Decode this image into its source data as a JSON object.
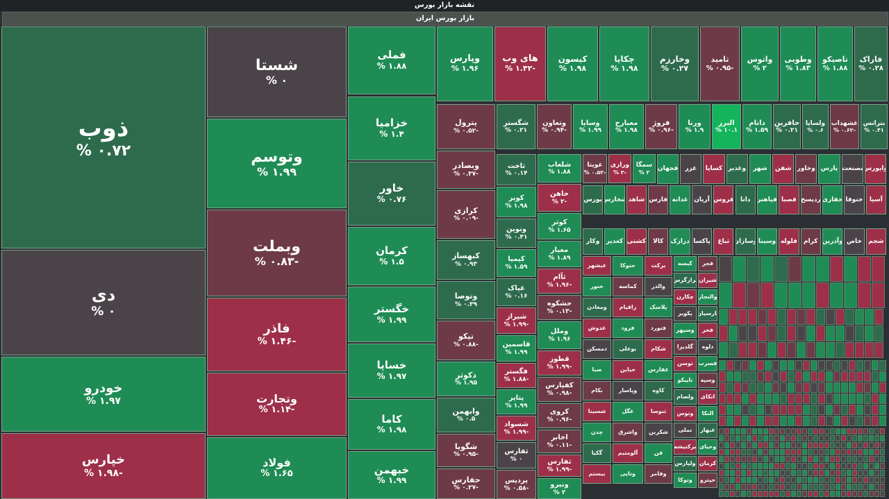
{
  "header": {
    "title": "نقشه بازار بورس",
    "market": "بازار بورس ایران"
  },
  "colors": {
    "up": "#1f8c55",
    "up_mild": "#2e6b4c",
    "up_bright": "#14b45c",
    "neutral": "#4a4449",
    "down_mild": "#6e3a48",
    "down": "#9e2f49"
  },
  "chart_data": {
    "type": "treemap",
    "title": "نقشه بازار بورس",
    "market": "بازار بورس ایران",
    "tiles": [
      {
        "symbol": "ذوب",
        "change": "% ۰.۷۲",
        "value": 0.72
      },
      {
        "symbol": "دی",
        "change": "% ۰",
        "value": 0
      },
      {
        "symbol": "خودرو",
        "change": "% ۱.۹۷",
        "value": 1.97
      },
      {
        "symbol": "خپارس",
        "change": "% ۱.۹۸-",
        "value": -1.98
      },
      {
        "symbol": "شستا",
        "change": "% ۰",
        "value": 0
      },
      {
        "symbol": "وتوسم",
        "change": "% ۱.۹۹",
        "value": 1.99
      },
      {
        "symbol": "وبملت",
        "change": "% ۰.۸۳-",
        "value": -0.83
      },
      {
        "symbol": "فاذر",
        "change": "% ۱.۴۶-",
        "value": -1.46
      },
      {
        "symbol": "وتجارت",
        "change": "% ۱.۱۴-",
        "value": -1.14
      },
      {
        "symbol": "فولاد",
        "change": "% ۱.۶۵",
        "value": 1.65
      },
      {
        "symbol": "فملی",
        "change": "% ۱.۸۸",
        "value": 1.88
      },
      {
        "symbol": "خزامیا",
        "change": "% ۱.۴",
        "value": 1.4
      },
      {
        "symbol": "خاور",
        "change": "% ۰.۷۶",
        "value": 0.76
      },
      {
        "symbol": "کرمان",
        "change": "% ۱.۵",
        "value": 1.5
      },
      {
        "symbol": "خگستر",
        "change": "% ۱.۹۹",
        "value": 1.99
      },
      {
        "symbol": "خساپا",
        "change": "% ۱.۹۷",
        "value": 1.97
      },
      {
        "symbol": "کاما",
        "change": "% ۱.۹۸",
        "value": 1.98
      },
      {
        "symbol": "خبهمن",
        "change": "% ۱.۹۹",
        "value": 1.99
      },
      {
        "symbol": "وپارس",
        "change": "% ۱.۹۶",
        "value": 1.96
      },
      {
        "symbol": "های وب",
        "change": "% ۱.۴۲-",
        "value": -1.42
      },
      {
        "symbol": "کیسون",
        "change": "% ۱.۹۸",
        "value": 1.98
      },
      {
        "symbol": "چکاپا",
        "change": "% ۱.۹۸",
        "value": 1.98
      },
      {
        "symbol": "وخارزم",
        "change": "% ۰.۲۷",
        "value": 0.27
      },
      {
        "symbol": "ثامید",
        "change": "% ۰.۹۵-",
        "value": -0.95
      },
      {
        "symbol": "واتوس",
        "change": "% ۲",
        "value": 2
      },
      {
        "symbol": "وطوبی",
        "change": "% ۱.۸۳",
        "value": 1.83
      },
      {
        "symbol": "تاصیکو",
        "change": "% ۱.۸۸",
        "value": 1.88
      },
      {
        "symbol": "فاراک",
        "change": "% ۰.۲۸",
        "value": 0.28
      },
      {
        "symbol": "پترول",
        "change": "% ۰.۵۲-",
        "value": -0.52
      },
      {
        "symbol": "شگستر",
        "change": "% ۰.۲۱",
        "value": 0.21
      },
      {
        "symbol": "وتعاون",
        "change": "% ۰.۹۴-",
        "value": -0.94
      },
      {
        "symbol": "وساپا",
        "change": "% ۱.۹۹",
        "value": 1.99
      },
      {
        "symbol": "معیارح",
        "change": "% ۱.۹۸",
        "value": 1.98
      },
      {
        "symbol": "فروژ",
        "change": "% ۰.۹۶-",
        "value": -0.96
      },
      {
        "symbol": "ورنا",
        "change": "% ۱.۹",
        "value": 1.9
      },
      {
        "symbol": "البرز",
        "change": "% ۱۰.۱",
        "value": 10.1
      },
      {
        "symbol": "داتام",
        "change": "% ۱.۵۹",
        "value": 1.59
      },
      {
        "symbol": "حافرین",
        "change": "% ۰.۲۱",
        "value": 0.21
      },
      {
        "symbol": "ولساپا",
        "change": "% ۰.۶",
        "value": 0.6
      },
      {
        "symbol": "غشهداب",
        "change": "% ۰.۶۲-",
        "value": -0.62
      },
      {
        "symbol": "بترانس",
        "change": "% ۰.۴۱",
        "value": 0.41
      },
      {
        "symbol": "وبصادر",
        "change": "% ۰.۳۷-",
        "value": -0.37
      },
      {
        "symbol": "کرازی",
        "change": "% ۰.۰۹-",
        "value": -0.09
      },
      {
        "symbol": "کبهساز",
        "change": "% ۰.۹۳",
        "value": 0.93
      },
      {
        "symbol": "وتوصا",
        "change": "% ۰.۳۹",
        "value": 0.39
      },
      {
        "symbol": "تپکو",
        "change": "% ۰.۸۸-",
        "value": -0.88
      },
      {
        "symbol": "دکوثر",
        "change": "% ۱.۹۵",
        "value": 1.95
      },
      {
        "symbol": "وابهمن",
        "change": "% ۰.۵",
        "value": 0.5
      },
      {
        "symbol": "شگویا",
        "change": "% ۰.۹۵-",
        "value": -0.95
      },
      {
        "symbol": "حفارس",
        "change": "% ۰.۲۷-",
        "value": -0.27
      },
      {
        "symbol": "ثاخت",
        "change": "% ۰.۱۴",
        "value": 0.14
      },
      {
        "symbol": "کویر",
        "change": "% ۱.۹۸",
        "value": 1.98
      },
      {
        "symbol": "ونوین",
        "change": "% ۰.۳۱",
        "value": 0.31
      },
      {
        "symbol": "کیمیا",
        "change": "% ۱.۵۹",
        "value": 1.59
      },
      {
        "symbol": "غپاک",
        "change": "% ۰.۱۶",
        "value": 0.16
      },
      {
        "symbol": "شیراز",
        "change": "% ۱.۹۹-",
        "value": -1.99
      },
      {
        "symbol": "قاسمین",
        "change": "% ۱.۹۹",
        "value": 1.99
      },
      {
        "symbol": "فگستر",
        "change": "% ۱.۸۸-",
        "value": -1.88
      },
      {
        "symbol": "پتایر",
        "change": "% ۱.۹۹",
        "value": 1.99
      },
      {
        "symbol": "شسواد",
        "change": "% ۱.۹۹-",
        "value": -1.99
      },
      {
        "symbol": "ثفارس",
        "change": "% ۰",
        "value": 0
      },
      {
        "symbol": "پردیس",
        "change": "% ۰.۵۸-",
        "value": -0.58
      },
      {
        "symbol": "شلعاب",
        "change": "% ۱.۸۸",
        "value": 1.88
      },
      {
        "symbol": "خاهن",
        "change": "% ۲-",
        "value": -2
      },
      {
        "symbol": "کوثر",
        "change": "% ۱.۶۵",
        "value": 1.65
      },
      {
        "symbol": "معیار",
        "change": "% ۱.۸۹",
        "value": 1.89
      },
      {
        "symbol": "ثآام",
        "change": "% ۱.۹۶-",
        "value": -1.96
      },
      {
        "symbol": "حشکوه",
        "change": "% ۰.۱۳-",
        "value": -0.13
      },
      {
        "symbol": "وملل",
        "change": "% ۱.۹۶",
        "value": 1.96
      },
      {
        "symbol": "قطوز",
        "change": "% ۱.۹۹-",
        "value": -1.99
      },
      {
        "symbol": "کفپارس",
        "change": "% ۰.۹۸-",
        "value": -0.98
      },
      {
        "symbol": "کروی",
        "change": "% ۰.۹۶-",
        "value": -0.96
      },
      {
        "symbol": "اخابر",
        "change": "% ۰.۱۱-",
        "value": -0.11
      },
      {
        "symbol": "ثفارس",
        "change": "% ۱.۹۹-",
        "value": -1.99
      },
      {
        "symbol": "ونیرو",
        "change": "% ۲",
        "value": 2
      },
      {
        "symbol": "غویتا",
        "change": "% ۰.۵۲-",
        "value": -0.52
      },
      {
        "symbol": "ورازی",
        "change": "% ۲-",
        "value": -2
      },
      {
        "symbol": "سمگا",
        "change": "% ۲",
        "value": 2
      }
    ],
    "small_labels": [
      "فجهان",
      "غزر",
      "کساپا",
      "وغدیر",
      "شهر",
      "شفن",
      "وخاور",
      "پارس",
      "بصنعت",
      "وایورس",
      "بورس",
      "شخارس",
      "شاهد",
      "فارس",
      "غدانه",
      "آریان",
      "فروس",
      "دانا",
      "فیاهنر",
      "فصبا",
      "ردیسح",
      "حفاری",
      "خنوقا",
      "آسیا",
      "وکار",
      "کغدیر",
      "کشتی",
      "کالا",
      "درازک",
      "پاکسا",
      "ثباغ",
      "وسازان",
      "وسینا",
      "فلوله",
      "کرام",
      "وآذرین",
      "خاص",
      "شجم",
      "غبشهر",
      "حتوکا",
      "برکت",
      "کیسه",
      "فجر",
      "خنور",
      "کماسه",
      "والذر",
      "برازگرس",
      "شیران",
      "ومعادن",
      "زاقیام",
      "پلاسک",
      "چکارن",
      "والتجار",
      "غدوش",
      "فرود",
      "فنورد",
      "پکویر",
      "پارسیان",
      "دمسکن",
      "بوعلی",
      "شکام",
      "وسپهر",
      "فخر",
      "صبا",
      "خباین",
      "غفارس",
      "گلدیرا",
      "دلوه",
      "بکام",
      "وپاسار",
      "کاوه",
      "توسن",
      "فسرب",
      "شسینا",
      "غگل",
      "ثنوسا",
      "تاپیکو",
      "وسپه",
      "چدن",
      "واشرق",
      "شکربن",
      "ولصام",
      "اتکای",
      "گکیا",
      "آلومتیم",
      "فن",
      "وتوس",
      "النکا",
      "بیستم",
      "وتاپی",
      "وفامر",
      "تملی",
      "غبهار",
      "برکتیشه",
      "وحیای",
      "ولپارس",
      "کرمان",
      "وتوکا",
      "حپترو",
      "وصنعت",
      "سینا",
      "غشیر",
      "وزمین",
      "شفارس"
    ]
  }
}
